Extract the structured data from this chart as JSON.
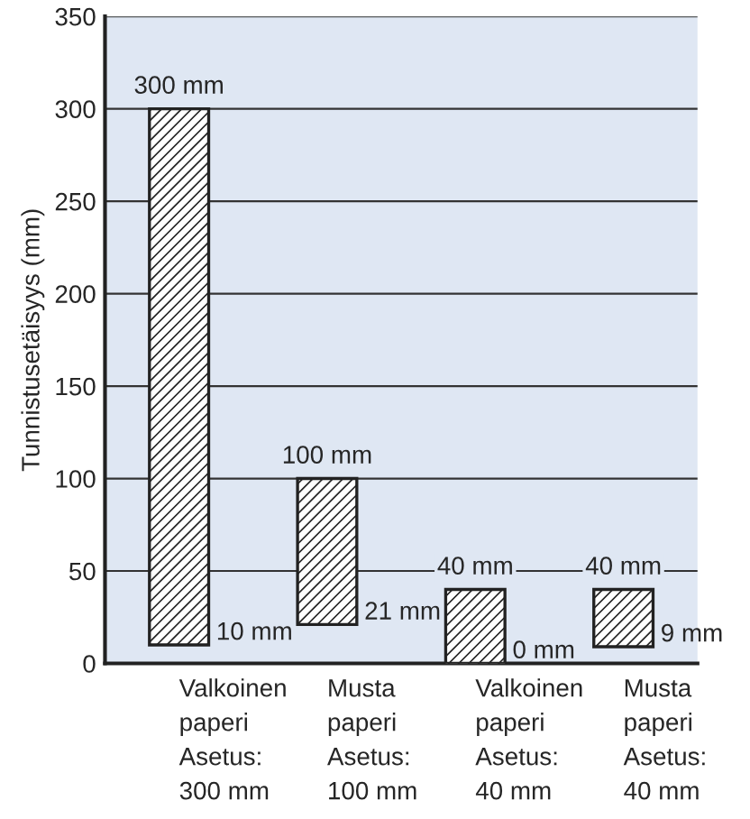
{
  "chart_data": {
    "type": "bar",
    "ylabel": "Tunnistusetäisyys (mm)",
    "categories": [
      "Valkoinen\npaperi\nAsetus:\n300 mm",
      "Musta\npaperi\nAsetus:\n100 mm",
      "Valkoinen\npaperi\nAsetus:\n40 mm",
      "Musta\npaperi\nAsetus:\n40 mm"
    ],
    "base": [
      10,
      21,
      0,
      9
    ],
    "values": [
      290,
      79,
      40,
      31
    ],
    "value_labels": [
      "300 mm",
      "100 mm",
      "40 mm",
      "40 mm"
    ],
    "color": "#222222",
    "annotations": [
      "10 mm",
      "21 mm",
      "0 mm",
      "9 mm"
    ],
    "ylim": [
      0,
      350
    ],
    "yticks": [
      0,
      50,
      100,
      150,
      200,
      250,
      300,
      350
    ],
    "grid": "y"
  }
}
